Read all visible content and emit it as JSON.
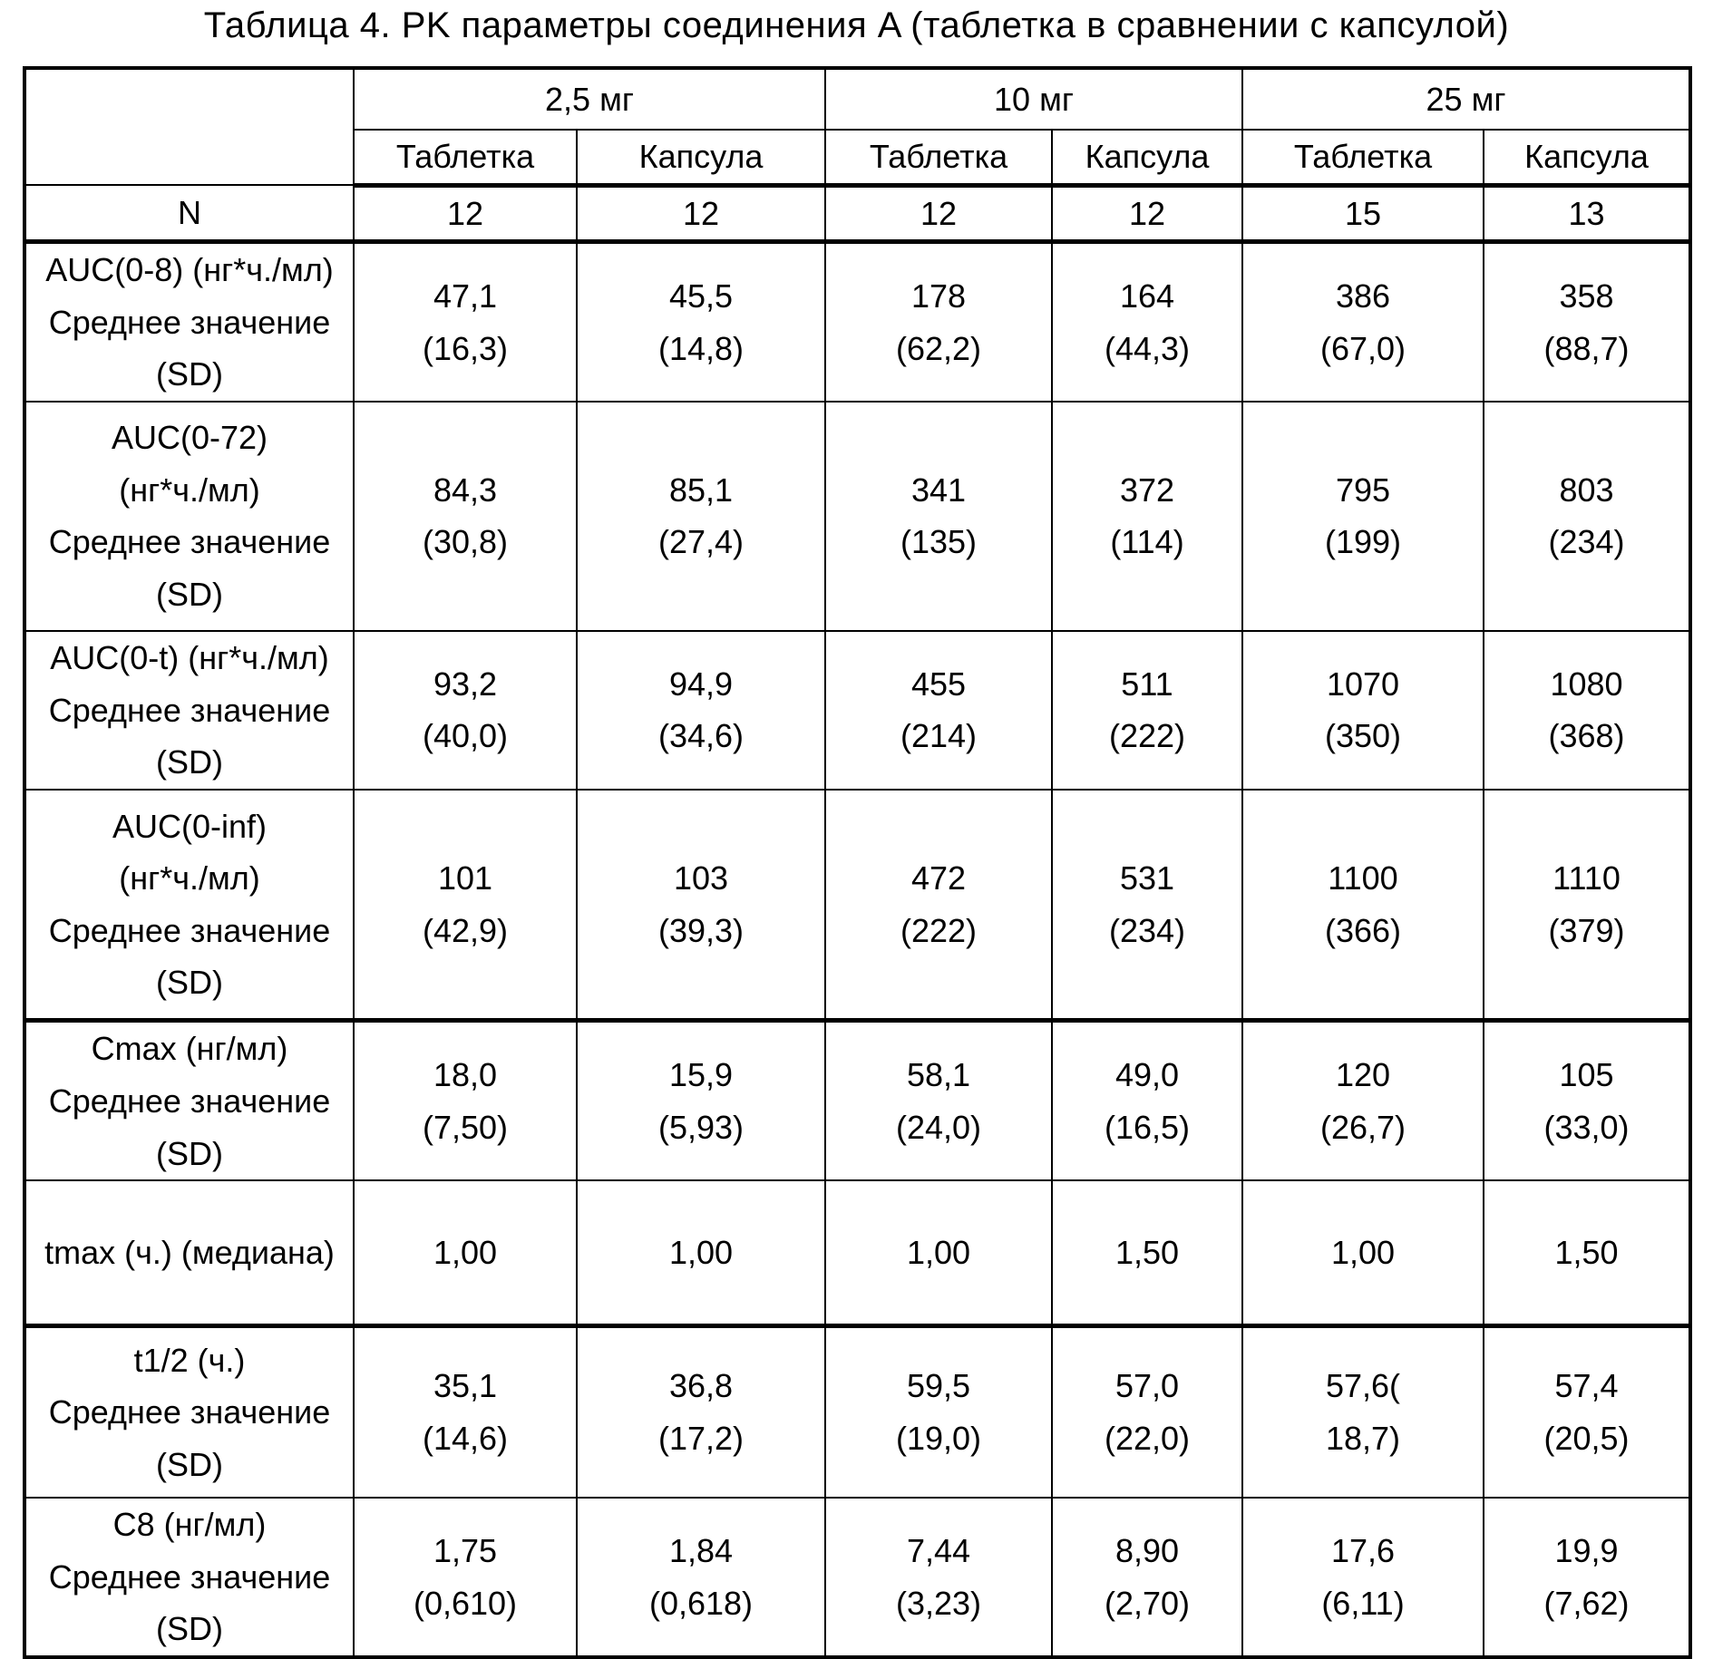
{
  "title": "Таблица 4. PK параметры соединения A (таблетка в сравнении с капсулой)",
  "table": {
    "dose_groups": [
      {
        "label": "2,5 мг"
      },
      {
        "label": "10 мг"
      },
      {
        "label": "25 мг"
      }
    ],
    "form_headers": [
      "Таблетка",
      "Капсула",
      "Таблетка",
      "Капсула",
      "Таблетка",
      "Капсула"
    ],
    "rows": [
      {
        "label_lines": [
          "N"
        ],
        "cells": [
          [
            "12"
          ],
          [
            "12"
          ],
          [
            "12"
          ],
          [
            "12"
          ],
          [
            "15"
          ],
          [
            "13"
          ]
        ]
      },
      {
        "label_lines": [
          "AUC(0-8) (нг*ч./мл)",
          "Среднее значение",
          "(SD)"
        ],
        "cells": [
          [
            "47,1",
            "(16,3)"
          ],
          [
            "45,5",
            "(14,8)"
          ],
          [
            "178",
            "(62,2)"
          ],
          [
            "164",
            "(44,3)"
          ],
          [
            "386",
            "(67,0)"
          ],
          [
            "358",
            "(88,7)"
          ]
        ]
      },
      {
        "label_lines": [
          "AUC(0-72)",
          "(нг*ч./мл)",
          "Среднее значение",
          "(SD)"
        ],
        "cells": [
          [
            "84,3",
            "(30,8)"
          ],
          [
            "85,1",
            "(27,4)"
          ],
          [
            "341",
            "(135)"
          ],
          [
            "372",
            "(114)"
          ],
          [
            "795",
            "(199)"
          ],
          [
            "803",
            "(234)"
          ]
        ]
      },
      {
        "label_lines": [
          "AUC(0-t) (нг*ч./мл)",
          "Среднее значение",
          "(SD)"
        ],
        "cells": [
          [
            "93,2",
            "(40,0)"
          ],
          [
            "94,9",
            "(34,6)"
          ],
          [
            "455",
            "(214)"
          ],
          [
            "511",
            "(222)"
          ],
          [
            "1070",
            "(350)"
          ],
          [
            "1080",
            "(368)"
          ]
        ]
      },
      {
        "label_lines": [
          "AUC(0-inf)",
          "(нг*ч./мл)",
          "Среднее значение",
          "(SD)"
        ],
        "cells": [
          [
            "101",
            "(42,9)"
          ],
          [
            "103",
            "(39,3)"
          ],
          [
            "472",
            "(222)"
          ],
          [
            "531",
            "(234)"
          ],
          [
            "1100",
            "(366)"
          ],
          [
            "1110",
            "(379)"
          ]
        ]
      },
      {
        "label_lines": [
          "Cmax (нг/мл)",
          "Среднее значение",
          "(SD)"
        ],
        "cells": [
          [
            "18,0",
            "(7,50)"
          ],
          [
            "15,9",
            "(5,93)"
          ],
          [
            "58,1",
            "(24,0)"
          ],
          [
            "49,0",
            "(16,5)"
          ],
          [
            "120",
            "(26,7)"
          ],
          [
            "105",
            "(33,0)"
          ]
        ]
      },
      {
        "label_lines": [
          "tmax (ч.) (медиана)"
        ],
        "cells": [
          [
            "1,00"
          ],
          [
            "1,00"
          ],
          [
            "1,00"
          ],
          [
            "1,50"
          ],
          [
            "1,00"
          ],
          [
            "1,50"
          ]
        ]
      },
      {
        "label_lines": [
          "t1/2 (ч.)",
          "Среднее значение",
          "(SD)"
        ],
        "cells": [
          [
            "35,1",
            "(14,6)"
          ],
          [
            "36,8",
            "(17,2)"
          ],
          [
            "59,5",
            "(19,0)"
          ],
          [
            "57,0",
            "(22,0)"
          ],
          [
            "57,6(",
            "18,7)"
          ],
          [
            "57,4",
            "(20,5)"
          ]
        ]
      },
      {
        "label_lines": [
          "C8 (нг/мл)",
          "Среднее значение",
          "(SD)"
        ],
        "cells": [
          [
            "1,75",
            "(0,610)"
          ],
          [
            "1,84",
            "(0,618)"
          ],
          [
            "7,44",
            "(3,23)"
          ],
          [
            "8,90",
            "(2,70)"
          ],
          [
            "17,6",
            "(6,11)"
          ],
          [
            "19,9",
            "(7,62)"
          ]
        ]
      }
    ]
  }
}
